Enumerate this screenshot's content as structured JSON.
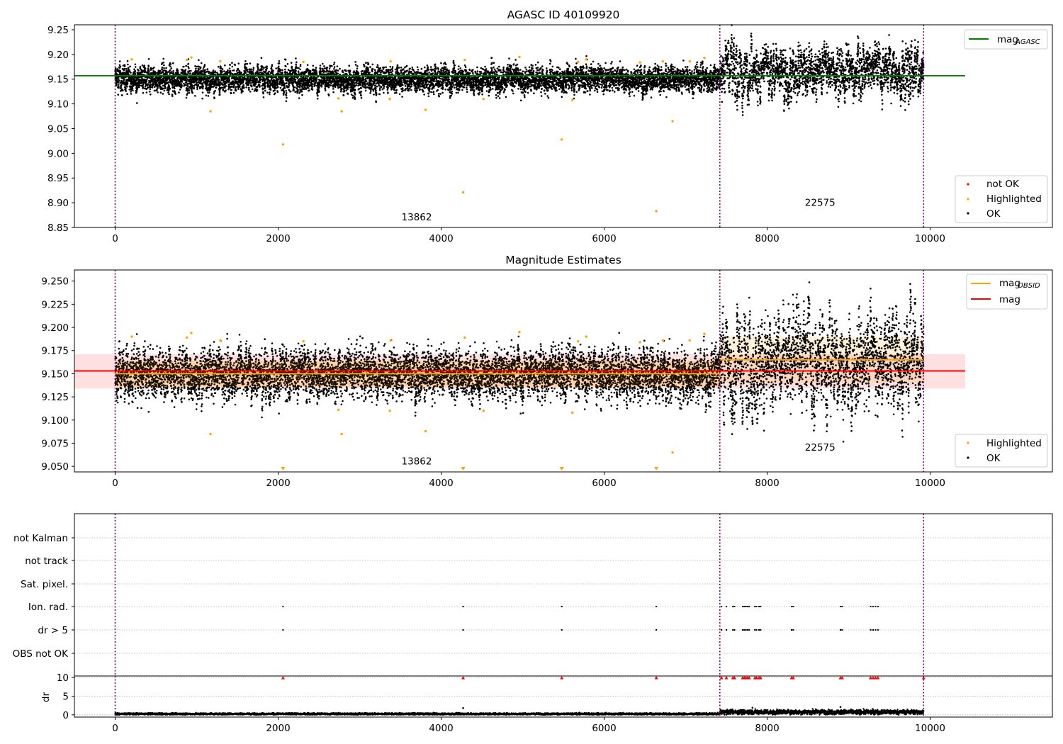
{
  "figure": {
    "title": "AGASC ID 40109920",
    "subtitle": "Magnitude Estimates"
  },
  "chart_data": [
    {
      "type": "scatter",
      "title": "AGASC ID 40109920",
      "xlim": [
        -500,
        11500
      ],
      "ylim": [
        8.85,
        9.26
      ],
      "xticks": [
        0,
        2000,
        4000,
        6000,
        8000,
        10000
      ],
      "yticks": [
        8.85,
        8.9,
        8.95,
        9.0,
        9.05,
        9.1,
        9.15,
        9.2,
        9.25
      ],
      "yticks_decimals": 2,
      "obs_boundaries": [
        0,
        7420,
        9920
      ],
      "obs_labels": [
        {
          "text": "13862",
          "x": 3700,
          "y": 8.864
        },
        {
          "text": "22575",
          "x": 8650,
          "y": 8.894
        }
      ],
      "lines": [
        {
          "name": "mag_AGASC",
          "color": "#008000",
          "x": [
            -500,
            10430
          ],
          "y": [
            9.157,
            9.157
          ]
        }
      ],
      "segments": [
        {
          "x_start": 0,
          "x_end": 7420,
          "mean": 9.15,
          "spread": 0.011,
          "slow": 0.008
        },
        {
          "x_start": 7420,
          "x_end": 9920,
          "mean": 9.165,
          "spread": 0.016,
          "slow": 0.022
        }
      ],
      "highlighted_points": {
        "x": [
          205,
          880,
          935,
          1170,
          1290,
          2060,
          2310,
          2740,
          2780,
          3370,
          3380,
          3810,
          4270,
          4290,
          4520,
          4960,
          5480,
          5610,
          5680,
          5780,
          6440,
          6640,
          6720,
          6840,
          7050,
          7230
        ],
        "y": [
          9.19,
          9.189,
          9.194,
          9.085,
          9.186,
          9.018,
          9.185,
          9.111,
          9.085,
          9.11,
          9.186,
          9.088,
          8.921,
          9.189,
          9.11,
          9.195,
          9.028,
          9.108,
          9.185,
          9.19,
          9.184,
          8.883,
          9.186,
          9.065,
          9.186,
          9.193
        ]
      },
      "legend": [
        {
          "label": "mag",
          "sub": "AGASC",
          "color": "#008000",
          "kind": "line"
        },
        {
          "label": "not OK",
          "color": "#ff0000",
          "kind": "point"
        },
        {
          "label": "Highlighted",
          "color": "#ffa500",
          "kind": "point"
        },
        {
          "label": "OK",
          "color": "#000000",
          "kind": "point"
        }
      ]
    },
    {
      "type": "scatter",
      "title": "Magnitude Estimates",
      "xlim": [
        -500,
        11500
      ],
      "ylim": [
        9.044,
        9.262
      ],
      "xticks": [
        0,
        2000,
        4000,
        6000,
        8000,
        10000
      ],
      "yticks": [
        9.05,
        9.075,
        9.1,
        9.125,
        9.15,
        9.175,
        9.2,
        9.225,
        9.25
      ],
      "yticks_decimals": 3,
      "obs_boundaries": [
        0,
        7420,
        9920
      ],
      "obs_labels": [
        {
          "text": "13862",
          "x": 3700,
          "y": 9.052
        },
        {
          "text": "22575",
          "x": 8650,
          "y": 9.067
        }
      ],
      "lines": [
        {
          "name": "mag",
          "color": "#ff0000",
          "x": [
            -500,
            10430
          ],
          "y": [
            9.153,
            9.153
          ]
        },
        {
          "name": "mag_OBSID 13862",
          "color": "#ffa500",
          "x": [
            0,
            7420
          ],
          "y": [
            9.15,
            9.15
          ]
        },
        {
          "name": "mag_OBSID 22575",
          "color": "#ffa500",
          "x": [
            7420,
            9920
          ],
          "y": [
            9.165,
            9.165
          ]
        }
      ],
      "bands": [
        {
          "color": "#ff0000",
          "opacity": 0.12,
          "x": [
            -500,
            10430
          ],
          "y": [
            9.134,
            9.171
          ]
        },
        {
          "color": "#ffa500",
          "opacity": 0.15,
          "x": [
            0,
            7420
          ],
          "y": [
            9.136,
            9.164
          ]
        },
        {
          "color": "#ffa500",
          "opacity": 0.15,
          "x": [
            7420,
            9920
          ],
          "y": [
            9.14,
            9.19
          ]
        }
      ],
      "segments": [
        {
          "x_start": 0,
          "x_end": 7420,
          "mean": 9.15,
          "spread": 0.011,
          "slow": 0.008
        },
        {
          "x_start": 7420,
          "x_end": 9920,
          "mean": 9.165,
          "spread": 0.016,
          "slow": 0.022
        }
      ],
      "highlighted_points": {
        "x": [
          205,
          880,
          935,
          1170,
          1290,
          2310,
          2740,
          2780,
          3370,
          3380,
          3810,
          4290,
          4520,
          4960,
          5610,
          5680,
          5780,
          6440,
          6720,
          6840,
          7050,
          7230
        ],
        "y": [
          9.19,
          9.189,
          9.194,
          9.085,
          9.186,
          9.185,
          9.111,
          9.085,
          9.11,
          9.186,
          9.088,
          9.189,
          9.11,
          9.195,
          9.108,
          9.185,
          9.19,
          9.184,
          9.186,
          9.065,
          9.186,
          9.193
        ]
      },
      "clipped_markers_x": [
        2060,
        4270,
        5480,
        6640
      ],
      "legend": [
        {
          "label": "mag",
          "sub": "OBSID",
          "color": "#ffa500",
          "kind": "line"
        },
        {
          "label": "mag",
          "color": "#ff0000",
          "kind": "line"
        },
        {
          "label": "Highlighted",
          "color": "#ffa500",
          "kind": "point"
        },
        {
          "label": "OK",
          "color": "#000000",
          "kind": "point"
        }
      ]
    },
    {
      "type": "scatter",
      "title": "",
      "xlim": [
        -500,
        11500
      ],
      "categories": [
        "not Kalman",
        "not track",
        "Sat. pixel.",
        "Ion. rad.",
        "dr > 5",
        "OBS not OK"
      ],
      "obs_boundaries": [
        0,
        7420,
        9920
      ],
      "flags": {
        "Ion. rad.": [
          2060,
          4270,
          5480,
          6640,
          7440,
          7500,
          7580,
          7600,
          7700,
          7720,
          7740,
          7760,
          7780,
          7850,
          7870,
          7900,
          7920,
          8300,
          8320,
          8900,
          8920,
          9270,
          9300,
          9330,
          9360
        ],
        "dr > 5": [
          2060,
          4270,
          5480,
          6640,
          7440,
          7500,
          7580,
          7600,
          7700,
          7720,
          7740,
          7760,
          7780,
          7850,
          7870,
          7900,
          7920,
          8300,
          8320,
          8900,
          8920,
          9270,
          9300,
          9330,
          9360
        ]
      }
    },
    {
      "type": "scatter",
      "title": "",
      "ylabel": "dr",
      "xlim": [
        -500,
        11500
      ],
      "ylim": [
        -0.6,
        10.4
      ],
      "xticks": [
        0,
        2000,
        4000,
        6000,
        8000,
        10000
      ],
      "yticks": [
        0,
        5,
        10
      ],
      "obs_boundaries": [
        0,
        7420,
        9920
      ],
      "clipped_markers_x": [
        2060,
        4270,
        5480,
        6640,
        7440,
        7500,
        7580,
        7600,
        7700,
        7720,
        7740,
        7760,
        7780,
        7850,
        7870,
        7900,
        7920,
        8300,
        8320,
        8900,
        8920,
        9270,
        9300,
        9330,
        9360,
        9920
      ],
      "segments": [
        {
          "x_start": 0,
          "x_end": 7420,
          "mean": 0.25,
          "spread": 0.12
        },
        {
          "x_start": 7420,
          "x_end": 9920,
          "mean": 0.75,
          "spread": 0.3
        }
      ],
      "outliers": {
        "x": [
          4270,
          7820,
          8900
        ],
        "y": [
          1.8,
          1.9,
          2.1
        ]
      }
    }
  ]
}
